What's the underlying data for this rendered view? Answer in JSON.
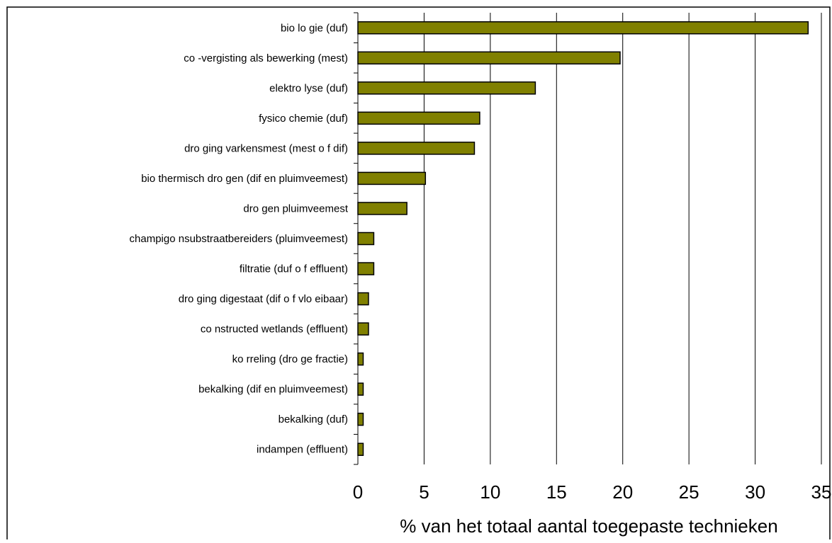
{
  "chart_data": {
    "type": "bar",
    "orientation": "horizontal",
    "title": "",
    "xlabel": "% van het totaal aantal toegepaste technieken",
    "ylabel": "",
    "xlim": [
      0,
      35
    ],
    "xticks": [
      0,
      5,
      10,
      15,
      20,
      25,
      30,
      35
    ],
    "xtick_labels": [
      "0",
      "5",
      "10",
      "15",
      "20",
      "25",
      "30",
      "35"
    ],
    "grid": "vertical",
    "legend": "none",
    "bar_color": "#808000",
    "bar_edge_color": "#000000",
    "categories": [
      "bio lo gie (duf)",
      "co -vergisting als bewerking (mest)",
      "elektro lyse (duf)",
      "fysico chemie (duf)",
      "dro ging varkensmest (mest o f dif)",
      "bio thermisch dro gen (dif en pluimveemest)",
      "dro gen pluimveemest",
      "champigo nsubstraatbereiders (pluimveemest)",
      "filtratie (duf o f effluent)",
      "dro ging digestaat (dif o f vlo eibaar)",
      "co nstructed wetlands (effluent)",
      "ko rreling (dro ge fractie)",
      "bekalking (dif en pluimveemest)",
      "bekalking (duf)",
      "indampen (effluent)"
    ],
    "values": [
      34.0,
      19.8,
      13.4,
      9.2,
      8.8,
      5.1,
      3.7,
      1.2,
      1.2,
      0.8,
      0.8,
      0.4,
      0.4,
      0.4,
      0.4
    ]
  }
}
